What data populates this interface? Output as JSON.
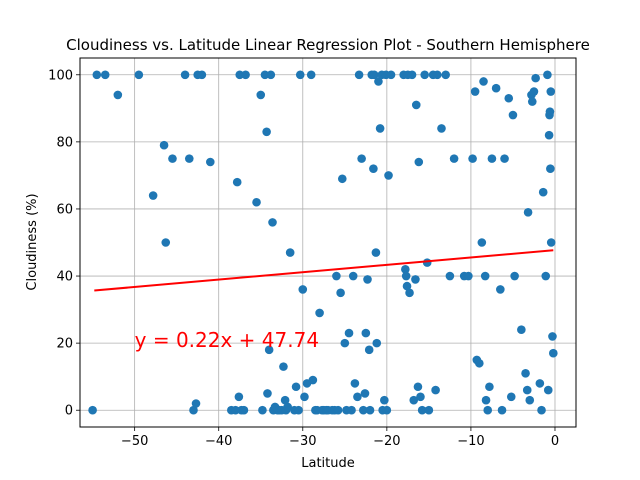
{
  "chart_data": {
    "type": "scatter",
    "title": "Cloudiness vs. Latitude Linear Regression Plot - Southern Hemisphere",
    "xlabel": "Latitude",
    "ylabel": "Cloudiness (%)",
    "xlim": [
      -56.5,
      2.5
    ],
    "ylim": [
      -5,
      105
    ],
    "xticks": [
      -50,
      -40,
      -30,
      -20,
      -10,
      0
    ],
    "yticks": [
      0,
      20,
      40,
      60,
      80,
      100
    ],
    "grid": true,
    "point_color": "#1f77b4",
    "line_color": "#ff0000",
    "annotation": {
      "text": "y = 0.22x + 47.74",
      "x": -50,
      "y": 20,
      "color": "#ff0000"
    },
    "regression": {
      "slope": 0.22,
      "intercept": 47.74,
      "x_range": [
        -54.8,
        -0.2
      ]
    },
    "points": [
      [
        -55,
        0
      ],
      [
        -54.5,
        100
      ],
      [
        -53.5,
        100
      ],
      [
        -52,
        94
      ],
      [
        -49.5,
        100
      ],
      [
        -47.8,
        64
      ],
      [
        -46.5,
        79
      ],
      [
        -46.3,
        50
      ],
      [
        -45.5,
        75
      ],
      [
        -44,
        100
      ],
      [
        -43.5,
        75
      ],
      [
        -43,
        0
      ],
      [
        -42.7,
        2
      ],
      [
        -42.5,
        100
      ],
      [
        -42,
        100
      ],
      [
        -41,
        74
      ],
      [
        -38.5,
        0
      ],
      [
        -38,
        0
      ],
      [
        -37.8,
        68
      ],
      [
        -37.6,
        4
      ],
      [
        -37.5,
        100
      ],
      [
        -37.3,
        0
      ],
      [
        -37,
        0
      ],
      [
        -36.8,
        100
      ],
      [
        -35.5,
        62
      ],
      [
        -35,
        94
      ],
      [
        -34.8,
        0
      ],
      [
        -34.5,
        100
      ],
      [
        -34.3,
        83
      ],
      [
        -34.2,
        5
      ],
      [
        -34,
        18
      ],
      [
        -33.8,
        100
      ],
      [
        -33.6,
        56
      ],
      [
        -33.5,
        0
      ],
      [
        -33.3,
        1
      ],
      [
        -33,
        0
      ],
      [
        -32.8,
        0
      ],
      [
        -32.5,
        0
      ],
      [
        -32.3,
        13
      ],
      [
        -32.1,
        3
      ],
      [
        -32,
        0
      ],
      [
        -31.8,
        1
      ],
      [
        -31.5,
        47
      ],
      [
        -31,
        0
      ],
      [
        -30.8,
        7
      ],
      [
        -30.5,
        0
      ],
      [
        -30.3,
        100
      ],
      [
        -30,
        36
      ],
      [
        -29.8,
        4
      ],
      [
        -29.5,
        8
      ],
      [
        -29,
        100
      ],
      [
        -28.8,
        9
      ],
      [
        -28.5,
        0
      ],
      [
        -28.3,
        0
      ],
      [
        -28,
        29
      ],
      [
        -27.7,
        0
      ],
      [
        -27.5,
        0
      ],
      [
        -27.2,
        0
      ],
      [
        -27,
        0
      ],
      [
        -26.5,
        0
      ],
      [
        -26.2,
        0
      ],
      [
        -26,
        40
      ],
      [
        -25.8,
        0
      ],
      [
        -25.5,
        35
      ],
      [
        -25.3,
        69
      ],
      [
        -25,
        20
      ],
      [
        -24.8,
        0
      ],
      [
        -24.5,
        23
      ],
      [
        -24.2,
        0
      ],
      [
        -24,
        40
      ],
      [
        -23.8,
        8
      ],
      [
        -23.5,
        4
      ],
      [
        -23.3,
        100
      ],
      [
        -23,
        75
      ],
      [
        -22.8,
        0
      ],
      [
        -22.6,
        5
      ],
      [
        -22.5,
        23
      ],
      [
        -22.3,
        39
      ],
      [
        -22.1,
        18
      ],
      [
        -22,
        0
      ],
      [
        -21.8,
        100
      ],
      [
        -21.6,
        72
      ],
      [
        -21.5,
        100
      ],
      [
        -21.3,
        47
      ],
      [
        -21.2,
        20
      ],
      [
        -21,
        98
      ],
      [
        -20.8,
        84
      ],
      [
        -20.6,
        100
      ],
      [
        -20.5,
        0
      ],
      [
        -20.3,
        3
      ],
      [
        -20.1,
        100
      ],
      [
        -20,
        0
      ],
      [
        -19.8,
        70
      ],
      [
        -19.5,
        100
      ],
      [
        -18,
        100
      ],
      [
        -17.8,
        42
      ],
      [
        -17.7,
        40
      ],
      [
        -17.6,
        37
      ],
      [
        -17.5,
        100
      ],
      [
        -17.3,
        35
      ],
      [
        -17,
        100
      ],
      [
        -16.8,
        3
      ],
      [
        -16.6,
        39
      ],
      [
        -16.5,
        91
      ],
      [
        -16.3,
        7
      ],
      [
        -16.2,
        74
      ],
      [
        -16,
        4
      ],
      [
        -15.8,
        0
      ],
      [
        -15.5,
        100
      ],
      [
        -15.2,
        44
      ],
      [
        -15,
        0
      ],
      [
        -14.5,
        100
      ],
      [
        -14.2,
        6
      ],
      [
        -14,
        100
      ],
      [
        -13.5,
        84
      ],
      [
        -13,
        100
      ],
      [
        -12.5,
        40
      ],
      [
        -12,
        75
      ],
      [
        -10.8,
        40
      ],
      [
        -10.3,
        40
      ],
      [
        -9.8,
        75
      ],
      [
        -9.5,
        95
      ],
      [
        -9.3,
        15
      ],
      [
        -9,
        14
      ],
      [
        -8.7,
        50
      ],
      [
        -8.5,
        98
      ],
      [
        -8.3,
        40
      ],
      [
        -8.2,
        3
      ],
      [
        -8,
        0
      ],
      [
        -7.8,
        7
      ],
      [
        -7.5,
        75
      ],
      [
        -7,
        96
      ],
      [
        -6.5,
        36
      ],
      [
        -6.3,
        0
      ],
      [
        -6,
        75
      ],
      [
        -5.5,
        93
      ],
      [
        -5.2,
        4
      ],
      [
        -5,
        88
      ],
      [
        -4.8,
        40
      ],
      [
        -4,
        24
      ],
      [
        -3.5,
        11
      ],
      [
        -3.3,
        6
      ],
      [
        -3.2,
        59
      ],
      [
        -3,
        3
      ],
      [
        -2.8,
        94
      ],
      [
        -2.7,
        92
      ],
      [
        -2.5,
        95
      ],
      [
        -2.3,
        99
      ],
      [
        -1.8,
        8
      ],
      [
        -1.6,
        0
      ],
      [
        -1.4,
        65
      ],
      [
        -1.1,
        40
      ],
      [
        -0.9,
        100
      ],
      [
        -0.8,
        6
      ],
      [
        -0.7,
        82
      ],
      [
        -0.65,
        88
      ],
      [
        -0.6,
        89
      ],
      [
        -0.55,
        72
      ],
      [
        -0.5,
        95
      ],
      [
        -0.45,
        50
      ],
      [
        -0.3,
        22
      ],
      [
        -0.2,
        17
      ]
    ]
  }
}
